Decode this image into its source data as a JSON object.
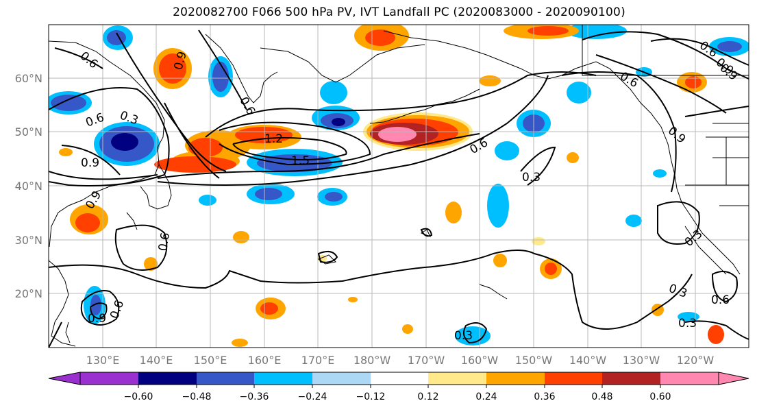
{
  "title": "2020082700 F066 500 hPa PV, IVT Landfall PC (2020083000 - 2020090100)",
  "lat_labels": [
    "60°N",
    "50°N",
    "40°N",
    "30°N",
    "20°N"
  ],
  "lon_labels": [
    "130°E",
    "140°E",
    "150°E",
    "160°E",
    "170°E",
    "180°W",
    "170°W",
    "160°W",
    "150°W",
    "140°W",
    "130°W",
    "120°W"
  ],
  "colorbar": {
    "ticks": [
      "−0.60",
      "−0.48",
      "−0.36",
      "−0.24",
      "−0.12",
      "0.12",
      "0.24",
      "0.36",
      "0.48",
      "0.60"
    ],
    "colors": [
      "#9b30d0",
      "#000080",
      "#3657c8",
      "#00bfff",
      "#add8f5",
      "#ffffff",
      "#ffe98a",
      "#ffa500",
      "#ff4000",
      "#b22222",
      "#ff87b0"
    ]
  },
  "contour_labels": [
    "0.6",
    "0.3",
    "0.9",
    "1.2",
    "1.5",
    "0.6",
    "0.9",
    "0.3",
    "0.6",
    "0.9",
    "0.6",
    "0.9",
    "0.6",
    "0.3",
    "0.6",
    "0.3",
    "0.3",
    "0.6",
    "0.3",
    "0.9",
    "0.6",
    "0.6",
    "0.9",
    "0.9"
  ]
}
